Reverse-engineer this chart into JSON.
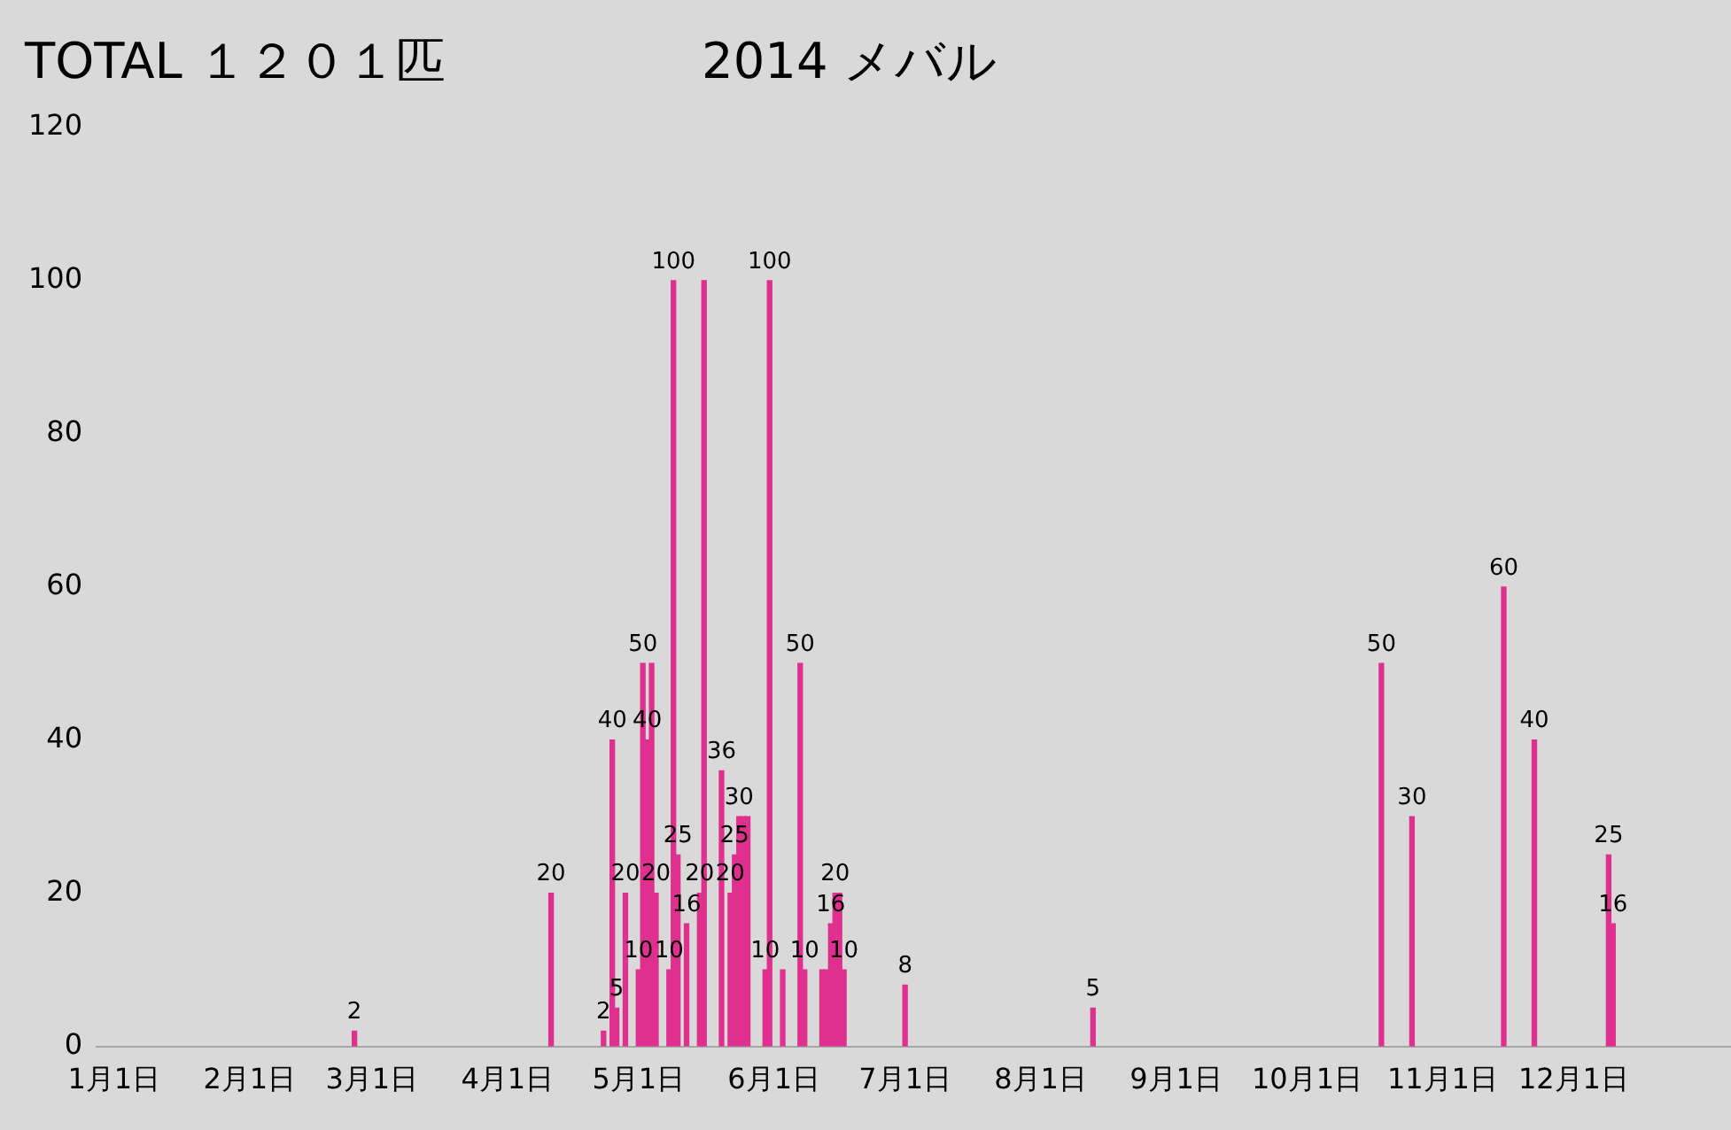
{
  "chart_data": {
    "type": "bar",
    "title": "TOTAL １２０１匹",
    "subtitle": "2014 メバル",
    "x": [
      "2014-02-25",
      "2014-04-11",
      "2014-04-23",
      "2014-04-25",
      "2014-04-26",
      "2014-04-28",
      "2014-05-01",
      "2014-05-02",
      "2014-05-03",
      "2014-05-04",
      "2014-05-05",
      "2014-05-08",
      "2014-05-09",
      "2014-05-10",
      "2014-05-12",
      "2014-05-15",
      "2014-05-16",
      "2014-05-20",
      "2014-05-22",
      "2014-05-23",
      "2014-05-24",
      "2014-05-25",
      "2014-05-26",
      "2014-05-30",
      "2014-05-31",
      "2014-06-03",
      "2014-06-07",
      "2014-06-08",
      "2014-06-12",
      "2014-06-13",
      "2014-06-14",
      "2014-06-15",
      "2014-06-16",
      "2014-06-17",
      "2014-07-01",
      "2014-08-13",
      "2014-10-18",
      "2014-10-25",
      "2014-11-15",
      "2014-11-22",
      "2014-12-09",
      "2014-12-10"
    ],
    "values": [
      2,
      20,
      2,
      40,
      5,
      20,
      10,
      50,
      40,
      50,
      20,
      10,
      100,
      25,
      16,
      20,
      100,
      36,
      20,
      25,
      30,
      30,
      30,
      10,
      100,
      10,
      50,
      10,
      10,
      10,
      16,
      20,
      20,
      10,
      8,
      5,
      50,
      30,
      60,
      40,
      25,
      16
    ],
    "value_labels": [
      "2",
      "20",
      "2",
      "40",
      "5",
      "20",
      "10",
      "50",
      "40",
      null,
      "20",
      "10",
      "100",
      "25",
      "16",
      "20",
      null,
      "36",
      "20",
      "25",
      "30",
      null,
      null,
      "10",
      "100",
      null,
      "50",
      "10",
      null,
      null,
      "16",
      "20",
      null,
      "10",
      "8",
      "5",
      "50",
      "30",
      "60",
      "40",
      "25",
      "16"
    ],
    "color": "#e0308f",
    "xlim": [
      "2013-12-28",
      "2015-01-06"
    ],
    "xticks": [
      {
        "value": "2014-01-01",
        "label": "1月1日"
      },
      {
        "value": "2014-02-01",
        "label": "2月1日"
      },
      {
        "value": "2014-03-01",
        "label": "3月1日"
      },
      {
        "value": "2014-04-01",
        "label": "4月1日"
      },
      {
        "value": "2014-05-01",
        "label": "5月1日"
      },
      {
        "value": "2014-06-01",
        "label": "6月1日"
      },
      {
        "value": "2014-07-01",
        "label": "7月1日"
      },
      {
        "value": "2014-08-01",
        "label": "8月1日"
      },
      {
        "value": "2014-09-01",
        "label": "9月1日"
      },
      {
        "value": "2014-10-01",
        "label": "10月1日"
      },
      {
        "value": "2014-11-01",
        "label": "11月1日"
      },
      {
        "value": "2014-12-01",
        "label": "12月1日"
      }
    ],
    "ylim": [
      0,
      120
    ],
    "yticks": [
      0,
      20,
      40,
      60,
      80,
      100,
      120
    ],
    "grid": false,
    "legend": false
  }
}
